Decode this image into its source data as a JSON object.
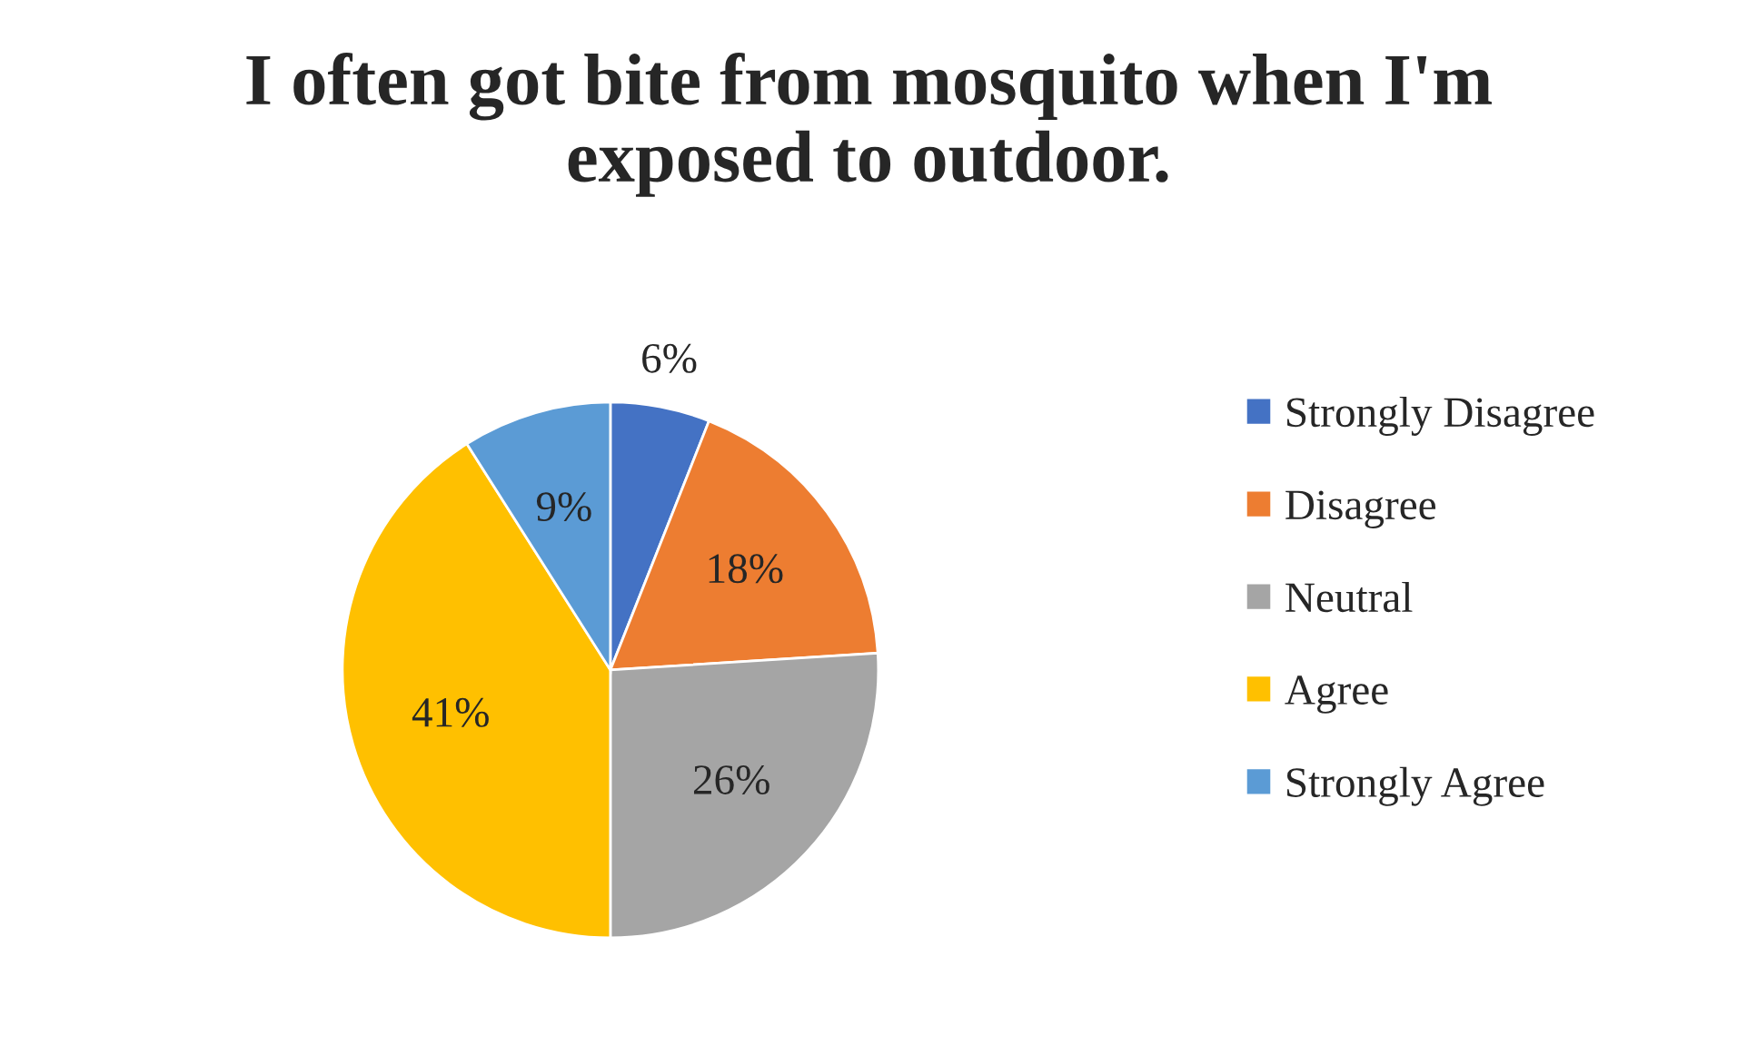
{
  "chart_data": {
    "type": "pie",
    "title": "I often got bite from mosquito when I'm exposed to outdoor.",
    "categories": [
      "Strongly Disagree",
      "Disagree",
      "Neutral",
      "Agree",
      "Strongly Agree"
    ],
    "values": [
      6,
      18,
      26,
      41,
      9
    ],
    "colors": [
      "#4472c4",
      "#ed7d31",
      "#a5a5a5",
      "#ffc000",
      "#5b9bd5"
    ],
    "value_labels": [
      "6%",
      "18%",
      "26%",
      "41%",
      "9%"
    ],
    "legend": "right"
  }
}
